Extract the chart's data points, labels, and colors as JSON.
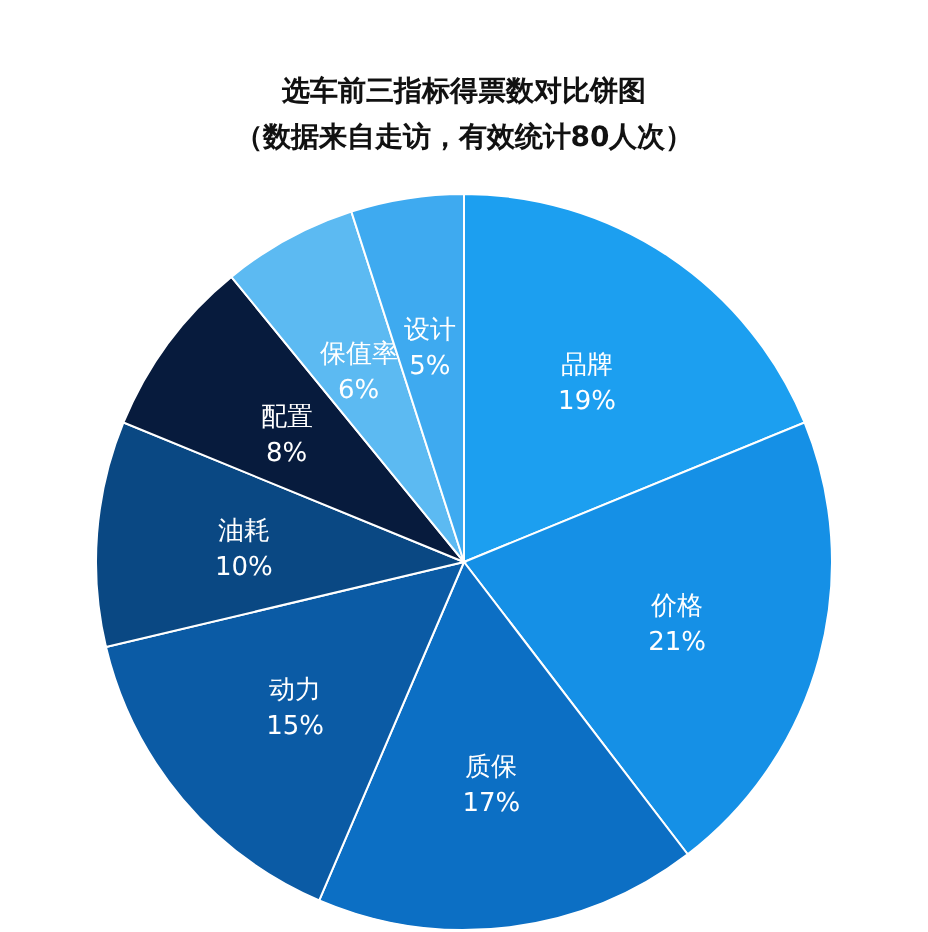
{
  "chart_data": {
    "type": "pie",
    "title": "选车前三指标得票数对比饼图",
    "subtitle": "（数据来自走访，有效统计80人次）",
    "categories": [
      "品牌",
      "价格",
      "质保",
      "动力",
      "油耗",
      "配置",
      "保值率",
      "设计"
    ],
    "values": [
      19,
      21,
      17,
      15,
      10,
      8,
      6,
      5
    ],
    "colors": [
      "#1c9ff0",
      "#1590e6",
      "#0c6fc4",
      "#0b5ba5",
      "#0a4883",
      "#071b3d",
      "#5cbaf2",
      "#3eaaf0"
    ],
    "value_labels": [
      "19%",
      "21%",
      "17%",
      "15%",
      "10%",
      "8%",
      "6%",
      "5%"
    ]
  }
}
